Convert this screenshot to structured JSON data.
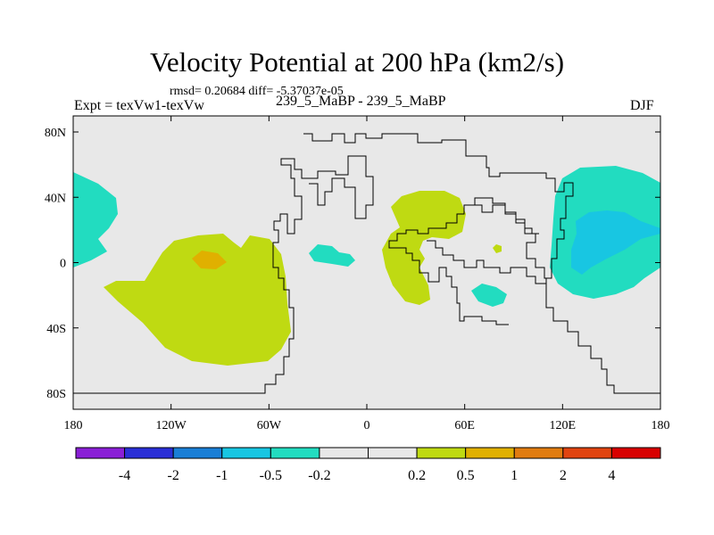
{
  "title": "Velocity Potential at 200 hPa (km2/s)",
  "stats_line": "rmsd= 0.20684 diff= -5.37037e-05",
  "left_label": "Expt = texVw1-texVw",
  "center_label": "239_5_MaBP - 239_5_MaBP",
  "right_label": "DJF",
  "y_ticks": [
    "80N",
    "40N",
    "0",
    "40S",
    "80S"
  ],
  "x_ticks": [
    "180",
    "120W",
    "60W",
    "0",
    "60E",
    "120E",
    "180"
  ],
  "colorbar": {
    "colors": [
      "#8a1fd6",
      "#2a2fd6",
      "#1a7fd6",
      "#18c6e2",
      "#22dcc0",
      "#e8e8e8",
      "#e8e8e8",
      "#bfda12",
      "#e0b000",
      "#e07c10",
      "#e04410",
      "#d80000"
    ],
    "labels": [
      "-4",
      "-2",
      "-1",
      "-0.5",
      "-0.2",
      "0.2",
      "0.5",
      "1",
      "2",
      "4"
    ]
  },
  "fill_colors": {
    "background": "#e8e8e8",
    "neg_02": "#22dcc0",
    "neg_05": "#18c6e2",
    "pos_02": "#bfda12",
    "pos_05": "#e0b000"
  }
}
